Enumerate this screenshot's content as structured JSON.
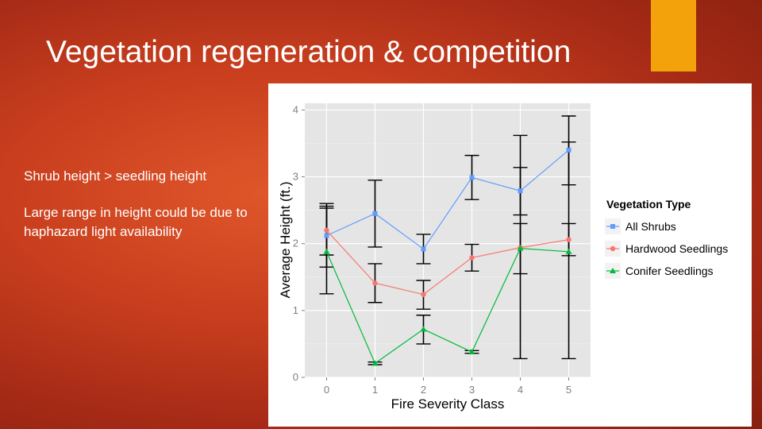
{
  "slide": {
    "title": "Vegetation regeneration & competition",
    "bullets": [
      "Shrub height > seedling height",
      "Large range in height could be due to haphazard light availability"
    ],
    "accent_color": "#f4a20c"
  },
  "chart_data": {
    "type": "line",
    "xlabel": "Fire Severity Class",
    "ylabel": "Average Height (ft.)",
    "x": [
      0,
      1,
      2,
      3,
      4,
      5
    ],
    "xticks": [
      "0",
      "1",
      "2",
      "3",
      "4",
      "5"
    ],
    "yticks": [
      "0",
      "1",
      "2",
      "3",
      "4"
    ],
    "xlim": [
      -0.45,
      5.45
    ],
    "ylim": [
      0,
      4.1
    ],
    "grid": true,
    "legend_title": "Vegetation Type",
    "legend_position": "right",
    "series": [
      {
        "name": "All Shrubs",
        "color": "#619cff",
        "marker": "square",
        "values": [
          2.12,
          2.45,
          1.92,
          2.99,
          2.79,
          3.4
        ],
        "err_low": [
          1.65,
          1.95,
          1.7,
          2.66,
          2.43,
          2.88
        ],
        "err_high": [
          2.6,
          2.95,
          2.14,
          3.32,
          3.14,
          3.91
        ]
      },
      {
        "name": "Hardwood Seedlings",
        "color": "#f8766d",
        "marker": "circle",
        "values": [
          2.2,
          1.41,
          1.24,
          1.79,
          1.94,
          2.06
        ],
        "err_low": [
          1.83,
          1.12,
          1.02,
          1.59,
          1.55,
          1.82
        ],
        "err_high": [
          2.56,
          1.7,
          1.45,
          1.99,
          2.3,
          2.3
        ]
      },
      {
        "name": "Conifer Seedlings",
        "color": "#00ba38",
        "marker": "triangle",
        "values": [
          1.88,
          0.21,
          0.72,
          0.38,
          1.93,
          1.88
        ],
        "err_low": [
          1.25,
          0.19,
          0.5,
          0.36,
          0.28,
          0.28
        ],
        "err_high": [
          2.53,
          0.23,
          0.93,
          0.4,
          3.62,
          3.52
        ]
      }
    ]
  }
}
